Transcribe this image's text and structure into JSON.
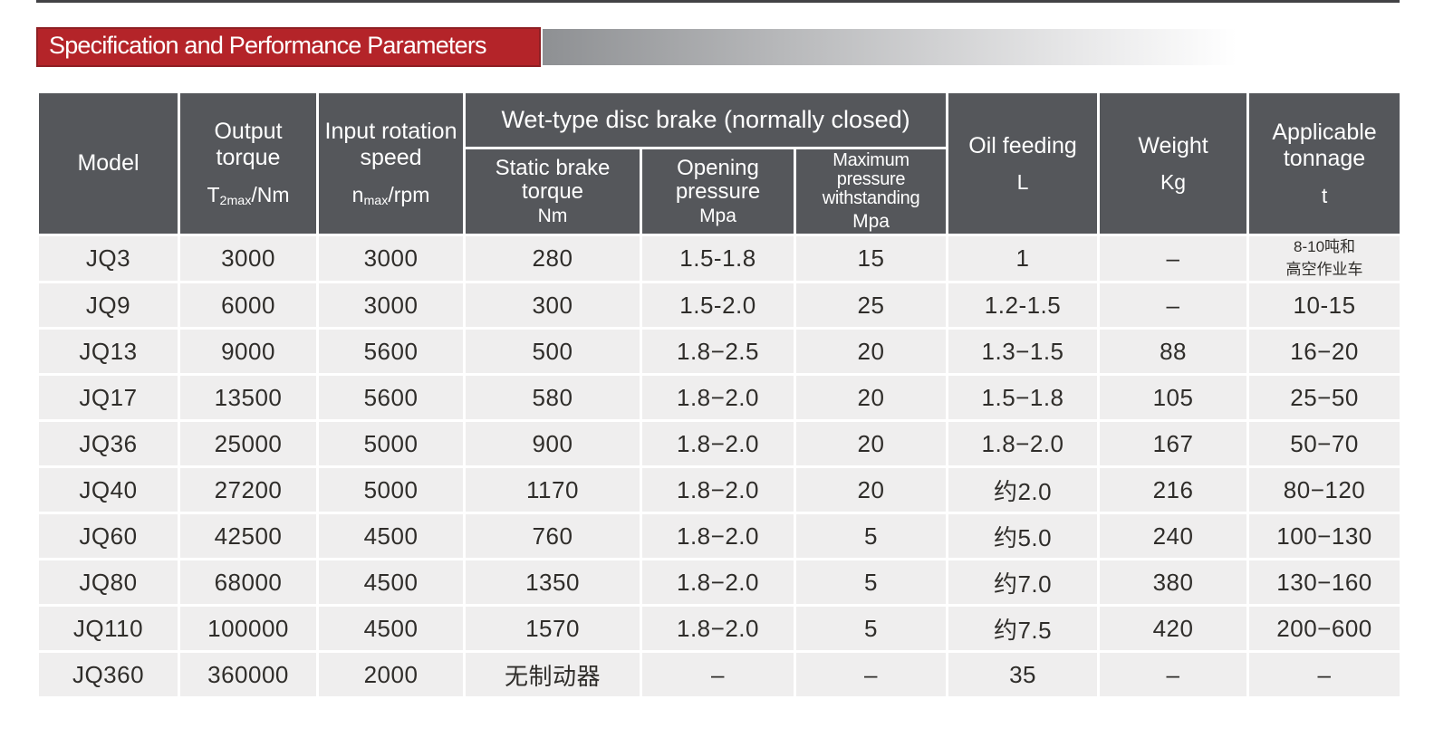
{
  "page": {
    "title": "Specification and Performance Parameters"
  },
  "colors": {
    "accent_red": "#b42429",
    "accent_red_dark": "#8e1e23",
    "header_gray": "#55575b",
    "row_gray": "#efeeee",
    "gradient_start": "#8e9093",
    "body_text": "#2f2d2a"
  },
  "table": {
    "header": {
      "model": "Model",
      "output_torque_label": "Output torque",
      "output_torque_unit_pre": "T",
      "output_torque_unit_sub": "2max",
      "output_torque_unit_post": "/Nm",
      "input_speed_label": "Input rotation speed",
      "input_speed_unit_pre": "n",
      "input_speed_unit_sub": "max",
      "input_speed_unit_post": "/rpm",
      "brake_group": "Wet-type disc brake (normally closed)",
      "static_brake_label": "Static brake torque",
      "static_brake_unit": "Nm",
      "opening_pressure_label": "Opening pressure",
      "opening_pressure_unit": "Mpa",
      "max_pressure_label": "Maximum pressure withstanding",
      "max_pressure_unit": "Mpa",
      "oil_feeding_label": "Oil feeding",
      "oil_feeding_unit": "L",
      "weight_label": "Weight",
      "weight_unit": "Kg",
      "tonnage_label": "Applicable tonnage",
      "tonnage_unit": "t"
    },
    "row_keys": [
      "model",
      "output_torque",
      "input_speed",
      "static_brake",
      "opening_pressure",
      "max_pressure",
      "oil_feeding",
      "weight",
      "tonnage"
    ],
    "rows": [
      {
        "model": "JQ3",
        "output_torque": "3000",
        "input_speed": "3000",
        "static_brake": "280",
        "opening_pressure": "1.5-1.8",
        "max_pressure": "15",
        "oil_feeding": "1",
        "weight": "–",
        "tonnage": "8-10吨和\n高空作业车"
      },
      {
        "model": "JQ9",
        "output_torque": "6000",
        "input_speed": "3000",
        "static_brake": "300",
        "opening_pressure": "1.5-2.0",
        "max_pressure": "25",
        "oil_feeding": "1.2-1.5",
        "weight": "–",
        "tonnage": "10-15"
      },
      {
        "model": "JQ13",
        "output_torque": "9000",
        "input_speed": "5600",
        "static_brake": "500",
        "opening_pressure": "1.8−2.5",
        "max_pressure": "20",
        "oil_feeding": "1.3−1.5",
        "weight": "88",
        "tonnage": "16−20"
      },
      {
        "model": "JQ17",
        "output_torque": "13500",
        "input_speed": "5600",
        "static_brake": "580",
        "opening_pressure": "1.8−2.0",
        "max_pressure": "20",
        "oil_feeding": "1.5−1.8",
        "weight": "105",
        "tonnage": "25−50"
      },
      {
        "model": "JQ36",
        "output_torque": "25000",
        "input_speed": "5000",
        "static_brake": "900",
        "opening_pressure": "1.8−2.0",
        "max_pressure": "20",
        "oil_feeding": "1.8−2.0",
        "weight": "167",
        "tonnage": "50−70"
      },
      {
        "model": "JQ40",
        "output_torque": "27200",
        "input_speed": "5000",
        "static_brake": "1170",
        "opening_pressure": "1.8−2.0",
        "max_pressure": "20",
        "oil_feeding": "约2.0",
        "weight": "216",
        "tonnage": "80−120"
      },
      {
        "model": "JQ60",
        "output_torque": "42500",
        "input_speed": "4500",
        "static_brake": "760",
        "opening_pressure": "1.8−2.0",
        "max_pressure": "5",
        "oil_feeding": "约5.0",
        "weight": "240",
        "tonnage": "100−130"
      },
      {
        "model": "JQ80",
        "output_torque": "68000",
        "input_speed": "4500",
        "static_brake": "1350",
        "opening_pressure": "1.8−2.0",
        "max_pressure": "5",
        "oil_feeding": "约7.0",
        "weight": "380",
        "tonnage": "130−160"
      },
      {
        "model": "JQ110",
        "output_torque": "100000",
        "input_speed": "4500",
        "static_brake": "1570",
        "opening_pressure": "1.8−2.0",
        "max_pressure": "5",
        "oil_feeding": "约7.5",
        "weight": "420",
        "tonnage": "200−600"
      },
      {
        "model": "JQ360",
        "output_torque": "360000",
        "input_speed": "2000",
        "static_brake": "无制动器",
        "opening_pressure": "–",
        "max_pressure": "–",
        "oil_feeding": "35",
        "weight": "–",
        "tonnage": "–"
      }
    ]
  }
}
